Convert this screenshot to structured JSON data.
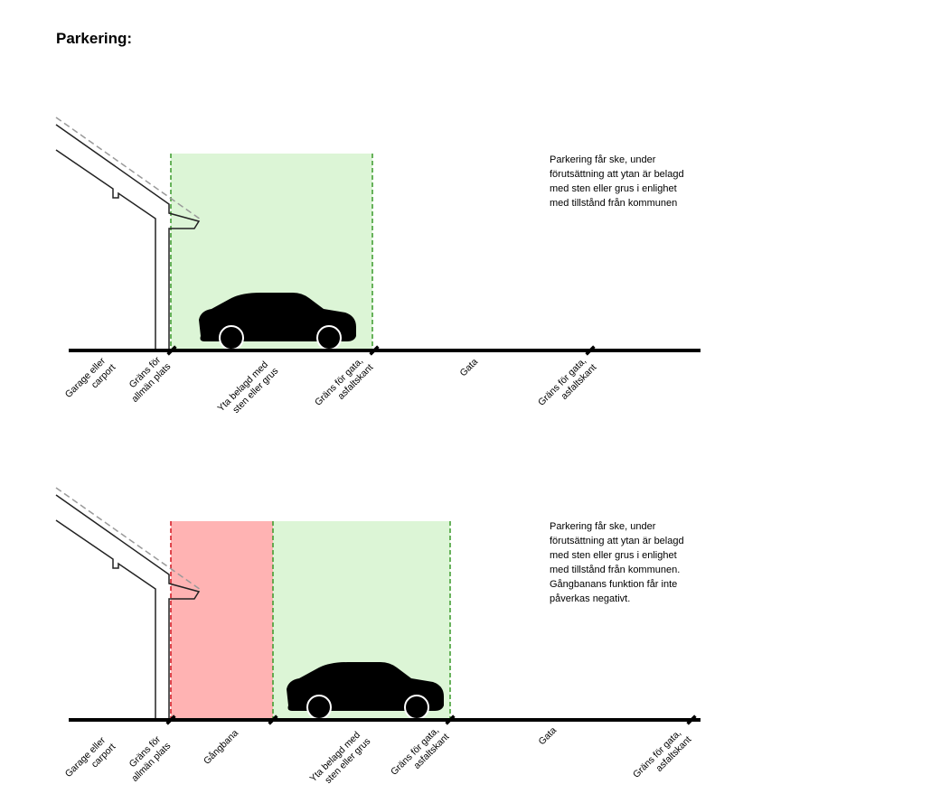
{
  "title": "Parkering:",
  "diagram1": {
    "description": "Parkering får ske, under förutsättning att ytan är belagd med sten eller grus i enlighet med tillstånd från kommunen",
    "labels": {
      "garage": [
        "Garage eller",
        "carport"
      ],
      "border_public": [
        "Gräns för",
        "allmän plats"
      ],
      "surface": [
        "Yta belagd med",
        "sten eller grus"
      ],
      "border_street_1": [
        "Gräns för gata,",
        "asfaltskant"
      ],
      "street": [
        "Gata"
      ],
      "border_street_2": [
        "Gräns för gata,",
        "asfaltskant"
      ]
    }
  },
  "diagram2": {
    "description": "Parkering får ske, under förutsättning att ytan är belagd med sten eller grus i enlighet med tillstånd från kommunen. Gångbanans funktion får inte påverkas negativt.",
    "labels": {
      "garage": [
        "Garage eller",
        "carport"
      ],
      "border_public": [
        "Gräns för",
        "allmän plats"
      ],
      "sidewalk": [
        "Gångbana"
      ],
      "surface": [
        "Yta belagd med",
        "sten eller grus"
      ],
      "border_street_1": [
        "Gräns för gata,",
        "asfaltskant"
      ],
      "street": [
        "Gata"
      ],
      "border_street_2": [
        "Gräns för gata,",
        "asfaltskant"
      ]
    }
  },
  "colors": {
    "parking_zone": "#dcf5d6",
    "sidewalk_zone": "#ffb3b3",
    "green_dash": "#3a9a2a",
    "red_dash": "#d4141e",
    "ground": "#000000",
    "roof_dash": "#999999"
  }
}
